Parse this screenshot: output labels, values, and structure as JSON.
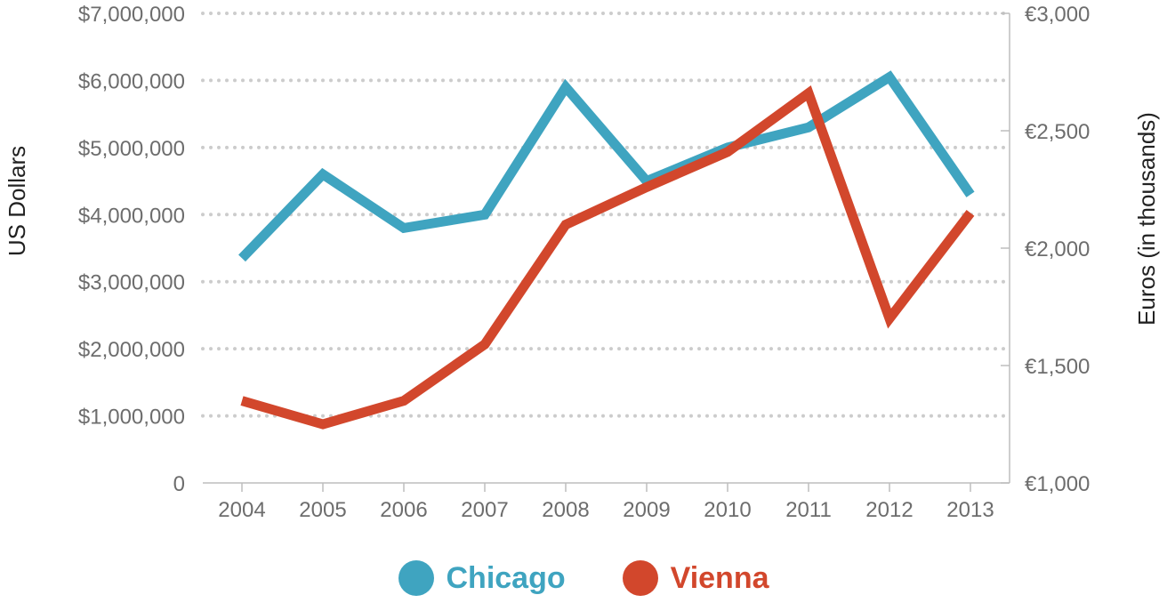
{
  "chart_data": {
    "type": "line",
    "categories": [
      "2004",
      "2005",
      "2006",
      "2007",
      "2008",
      "2009",
      "2010",
      "2011",
      "2012",
      "2013"
    ],
    "left_axis": {
      "label": "US Dollars",
      "ylim": [
        0,
        7000000
      ],
      "tick_values": [
        0,
        1000000,
        2000000,
        3000000,
        4000000,
        5000000,
        6000000,
        7000000
      ],
      "tick_labels": [
        "0",
        "$1,000,000",
        "$2,000,000",
        "$3,000,000",
        "$4,000,000",
        "$5,000,000",
        "$6,000,000",
        "$7,000,000"
      ]
    },
    "right_axis": {
      "label": "Euros (in thousands)",
      "ylim": [
        1000,
        3000
      ],
      "tick_values": [
        1000,
        1500,
        2000,
        2500,
        3000
      ],
      "tick_labels": [
        "€1,000",
        "€1,500",
        "€2,000",
        "€2,500",
        "€3,000"
      ]
    },
    "series": [
      {
        "name": "Chicago",
        "axis": "left",
        "color": "#3fa4c0",
        "values": [
          3350000,
          4600000,
          3800000,
          4000000,
          5900000,
          4500000,
          5000000,
          5300000,
          6050000,
          4300000
        ]
      },
      {
        "name": "Vienna",
        "axis": "right",
        "color": "#d2472c",
        "values": [
          1350,
          1250,
          1350,
          1590,
          2100,
          2260,
          2410,
          2660,
          1700,
          2150
        ]
      }
    ],
    "grid": true,
    "grid_style": "dotted",
    "legend_position": "bottom-center"
  },
  "legend": {
    "items": [
      {
        "label": "Chicago",
        "color": "#3fa4c0"
      },
      {
        "label": "Vienna",
        "color": "#d2472c"
      }
    ]
  }
}
